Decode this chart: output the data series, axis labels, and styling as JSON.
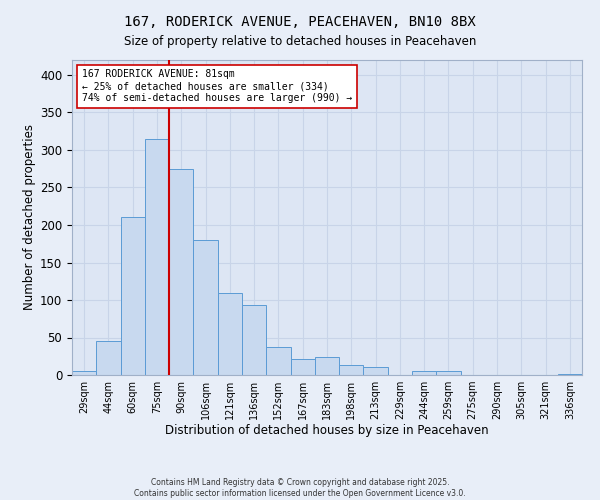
{
  "title_line1": "167, RODERICK AVENUE, PEACEHAVEN, BN10 8BX",
  "title_line2": "Size of property relative to detached houses in Peacehaven",
  "xlabel": "Distribution of detached houses by size in Peacehaven",
  "ylabel": "Number of detached properties",
  "bar_labels": [
    "29sqm",
    "44sqm",
    "60sqm",
    "75sqm",
    "90sqm",
    "106sqm",
    "121sqm",
    "136sqm",
    "152sqm",
    "167sqm",
    "183sqm",
    "198sqm",
    "213sqm",
    "229sqm",
    "244sqm",
    "259sqm",
    "275sqm",
    "290sqm",
    "305sqm",
    "321sqm",
    "336sqm"
  ],
  "bar_values": [
    5,
    45,
    210,
    315,
    275,
    180,
    110,
    93,
    38,
    22,
    24,
    14,
    11,
    0,
    5,
    6,
    0,
    0,
    0,
    0,
    2
  ],
  "bar_color": "#c8d9ef",
  "bar_edge_color": "#5b9bd5",
  "vline_x": 3.5,
  "vline_color": "#cc0000",
  "annotation_text": "167 RODERICK AVENUE: 81sqm\n← 25% of detached houses are smaller (334)\n74% of semi-detached houses are larger (990) →",
  "annotation_box_color": "#ffffff",
  "annotation_box_edge": "#cc0000",
  "ylim": [
    0,
    420
  ],
  "yticks": [
    0,
    50,
    100,
    150,
    200,
    250,
    300,
    350,
    400
  ],
  "grid_color": "#c8d4e8",
  "background_color": "#dde6f4",
  "fig_background": "#e8eef8",
  "footer_line1": "Contains HM Land Registry data © Crown copyright and database right 2025.",
  "footer_line2": "Contains public sector information licensed under the Open Government Licence v3.0."
}
